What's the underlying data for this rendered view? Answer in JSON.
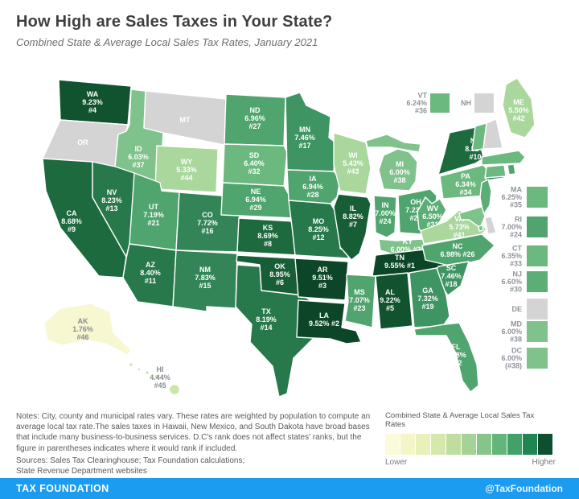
{
  "header": {
    "title": "How High are Sales Taxes in Your State?",
    "subtitle": "Combined State & Average Local Sales Tax Rates, January 2021"
  },
  "notes": "Notes: City, county and municipal rates vary. These rates are weighted by population to compute an average local tax rate.The sales taxes in Hawaii, New Mexico, and South Dakota have broad bases that include many business-to-business services. D.C's rank does not affect states' ranks, but the figure in parentheses indicates where it would rank if included.",
  "sources_line1": "Sources: Sales Tax Clearinghouse; Tax Foundation calculations;",
  "sources_line2": "State Revenue Department websites",
  "legend": {
    "title": "Combined State & Average Local Sales Tax Rates",
    "lower_label": "Lower",
    "higher_label": "Higher",
    "colors": [
      "#fbfbdc",
      "#f5f6c8",
      "#e9f0b8",
      "#d7e8ac",
      "#c0dda0",
      "#a5d295",
      "#86c489",
      "#63b57a",
      "#42a169",
      "#1f8551",
      "#0d4f2f"
    ]
  },
  "footer": {
    "left": "TAX FOUNDATION",
    "right": "@TaxFoundation",
    "bar_color": "#1b9cf0"
  },
  "map": {
    "no_data_fill": "#d4d4d4",
    "default_label_color": "#ffffff",
    "muted_label_color": "#898d92"
  },
  "chart_data": {
    "type": "choropleth",
    "title": "How High are Sales Taxes in Your State?",
    "subtitle": "Combined State & Average Local Sales Tax Rates, January 2021",
    "value_name": "combined state & average local sales tax rate",
    "unit": "%",
    "states": [
      {
        "abbr": "WA",
        "rate": 9.23,
        "rank": 4,
        "label_lines": [
          "WA",
          "9.23%",
          "#4"
        ],
        "fill": "#11532e"
      },
      {
        "abbr": "OR",
        "rate": null,
        "rank": null,
        "label_lines": [
          "OR"
        ],
        "fill": "#d4d4d4"
      },
      {
        "abbr": "CA",
        "rate": 8.68,
        "rank": 9,
        "label_lines": [
          "CA",
          "8.68%",
          "#9"
        ],
        "fill": "#1d6a3e"
      },
      {
        "abbr": "NV",
        "rate": 8.23,
        "rank": 13,
        "label_lines": [
          "NV",
          "8.23%",
          "#13"
        ],
        "fill": "#27784a"
      },
      {
        "abbr": "ID",
        "rate": 6.03,
        "rank": 37,
        "label_lines": [
          "ID",
          "6.03%",
          "#37"
        ],
        "fill": "#7fc28b"
      },
      {
        "abbr": "MT",
        "rate": null,
        "rank": null,
        "label_lines": [
          "MT"
        ],
        "fill": "#d4d4d4"
      },
      {
        "abbr": "WY",
        "rate": 5.33,
        "rank": 44,
        "label_lines": [
          "WY",
          "5.33%",
          "#44"
        ],
        "fill": "#a9d79c"
      },
      {
        "abbr": "UT",
        "rate": 7.19,
        "rank": 21,
        "label_lines": [
          "UT",
          "7.19%",
          "#21"
        ],
        "fill": "#50a56e"
      },
      {
        "abbr": "CO",
        "rate": 7.72,
        "rank": 16,
        "label_lines": [
          "CO",
          "7.72%",
          "#16"
        ],
        "fill": "#338557"
      },
      {
        "abbr": "AZ",
        "rate": 8.4,
        "rank": 11,
        "label_lines": [
          "AZ",
          "8.40%",
          "#11"
        ],
        "fill": "#27784a"
      },
      {
        "abbr": "NM",
        "rate": 7.83,
        "rank": 15,
        "label_lines": [
          "NM",
          "7.83%",
          "#15"
        ],
        "fill": "#338557"
      },
      {
        "abbr": "ND",
        "rate": 6.96,
        "rank": 27,
        "label_lines": [
          "ND",
          "6.96%",
          "#27"
        ],
        "fill": "#50a56e"
      },
      {
        "abbr": "SD",
        "rate": 6.4,
        "rank": 32,
        "label_lines": [
          "SD",
          "6.40%",
          "#32"
        ],
        "fill": "#6cb97f"
      },
      {
        "abbr": "NE",
        "rate": 6.94,
        "rank": 29,
        "label_lines": [
          "NE",
          "6.94%",
          "#29"
        ],
        "fill": "#50a56e"
      },
      {
        "abbr": "KS",
        "rate": 8.69,
        "rank": 8,
        "label_lines": [
          "KS",
          "8.69%",
          "#8"
        ],
        "fill": "#1d6a3e"
      },
      {
        "abbr": "OK",
        "rate": 8.95,
        "rank": 6,
        "label_lines": [
          "OK",
          "8.95%",
          "#6"
        ],
        "fill": "#175e36"
      },
      {
        "abbr": "TX",
        "rate": 8.19,
        "rank": 14,
        "label_lines": [
          "TX",
          "8.19%",
          "#14"
        ],
        "fill": "#27784a"
      },
      {
        "abbr": "MN",
        "rate": 7.46,
        "rank": 17,
        "label_lines": [
          "MN",
          "7.46%",
          "#17"
        ],
        "fill": "#3f9463"
      },
      {
        "abbr": "IA",
        "rate": 6.94,
        "rank": 28,
        "label_lines": [
          "IA",
          "6.94%",
          "#28"
        ],
        "fill": "#50a56e"
      },
      {
        "abbr": "MO",
        "rate": 8.25,
        "rank": 12,
        "label_lines": [
          "MO",
          "8.25%",
          "#12"
        ],
        "fill": "#27784a"
      },
      {
        "abbr": "AR",
        "rate": 9.51,
        "rank": 3,
        "label_lines": [
          "AR",
          "9.51%",
          "#3"
        ],
        "fill": "#0c4527"
      },
      {
        "abbr": "LA",
        "rate": 9.52,
        "rank": 2,
        "label_lines": [
          "LA",
          "9.52% #2"
        ],
        "fill": "#0c4527"
      },
      {
        "abbr": "WI",
        "rate": 5.43,
        "rank": 43,
        "label_lines": [
          "WI",
          "5.43%",
          "#43"
        ],
        "fill": "#a9d79c"
      },
      {
        "abbr": "IL",
        "rate": 8.82,
        "rank": 7,
        "label_lines": [
          "IL",
          "8.82%",
          "#7"
        ],
        "fill": "#175e36"
      },
      {
        "abbr": "MS",
        "rate": 7.07,
        "rank": 23,
        "label_lines": [
          "MS",
          "7.07%",
          "#23"
        ],
        "fill": "#50a56e"
      },
      {
        "abbr": "MI",
        "rate": 6.0,
        "rank": 38,
        "label_lines": [
          "MI",
          "6.00%",
          "#38"
        ],
        "fill": "#7fc28b"
      },
      {
        "abbr": "IN",
        "rate": 7.0,
        "rank": 24,
        "label_lines": [
          "IN",
          "7.00%",
          "#24"
        ],
        "fill": "#50a56e"
      },
      {
        "abbr": "OH",
        "rate": 7.23,
        "rank": 20,
        "label_lines": [
          "OH",
          "7.23%",
          "#20"
        ],
        "fill": "#50a56e"
      },
      {
        "abbr": "KY",
        "rate": 6.0,
        "rank": 38,
        "label_lines": [
          "KY",
          "6.00% #38"
        ],
        "fill": "#7fc28b"
      },
      {
        "abbr": "TN",
        "rate": 9.55,
        "rank": 1,
        "label_lines": [
          "TN",
          "9.55% #1"
        ],
        "fill": "#0c4527"
      },
      {
        "abbr": "AL",
        "rate": 9.22,
        "rank": 5,
        "label_lines": [
          "AL",
          "9.22%",
          "#5"
        ],
        "fill": "#11532e"
      },
      {
        "abbr": "WV",
        "rate": 6.5,
        "rank": 31,
        "label_lines": [
          "WV",
          "6.50%",
          "#31"
        ],
        "fill": "#5cae76"
      },
      {
        "abbr": "VA",
        "rate": 5.73,
        "rank": 41,
        "label_lines": [
          "VA",
          "5.73%",
          "#41"
        ],
        "fill": "#a9d79c"
      },
      {
        "abbr": "NC",
        "rate": 6.98,
        "rank": 26,
        "label_lines": [
          "NC",
          "6.98% #26"
        ],
        "fill": "#50a56e"
      },
      {
        "abbr": "SC",
        "rate": 7.46,
        "rank": 18,
        "label_lines": [
          "SC",
          "7.46%",
          "#18"
        ],
        "fill": "#3f9463"
      },
      {
        "abbr": "GA",
        "rate": 7.32,
        "rank": 19,
        "label_lines": [
          "GA",
          "7.32%",
          "#19"
        ],
        "fill": "#3f9463"
      },
      {
        "abbr": "FL",
        "rate": 7.08,
        "rank": 22,
        "label_lines": [
          "FL",
          "7.08%",
          "#22"
        ],
        "fill": "#50a56e"
      },
      {
        "abbr": "PA",
        "rate": 6.34,
        "rank": 34,
        "label_lines": [
          "PA",
          "6.34%",
          "#34"
        ],
        "fill": "#6cb97f"
      },
      {
        "abbr": "NY",
        "rate": 8.52,
        "rank": 10,
        "label_lines": [
          "NY",
          "8.52%",
          "#10"
        ],
        "fill": "#1d6a3e"
      },
      {
        "abbr": "ME",
        "rate": 5.5,
        "rank": 42,
        "label_lines": [
          "ME",
          "5.50%",
          "#42"
        ],
        "fill": "#a9d79c"
      },
      {
        "abbr": "AK",
        "rate": 1.76,
        "rank": 46,
        "label_lines": [
          "AK",
          "1.76%",
          "#46"
        ],
        "fill": "#f7f7d2",
        "label_color": "#898d92"
      },
      {
        "abbr": "HI",
        "rate": 4.44,
        "rank": 45,
        "label_lines": [
          "HI",
          "4.44%",
          "#45"
        ],
        "fill": "#cbe6aa",
        "label_color": "#898d92"
      },
      {
        "abbr": "VT",
        "rate": 6.24,
        "rank": 36,
        "label_lines": [
          "VT",
          "6.24%",
          "#36"
        ],
        "fill": "#6cb97f",
        "label_color": "#898d92"
      },
      {
        "abbr": "NH",
        "rate": null,
        "rank": null,
        "label_lines": [
          "NH"
        ],
        "fill": "#d4d4d4",
        "label_color": "#898d92"
      },
      {
        "abbr": "MA",
        "rate": 6.25,
        "rank": 35,
        "label_lines": [
          "MA",
          "6.25%",
          "#35"
        ],
        "fill": "#6cb97f",
        "label_color": "#898d92"
      },
      {
        "abbr": "RI",
        "rate": 7.0,
        "rank": 24,
        "label_lines": [
          "RI",
          "7.00%",
          "#24"
        ],
        "fill": "#50a56e",
        "label_color": "#898d92"
      },
      {
        "abbr": "CT",
        "rate": 6.35,
        "rank": 33,
        "label_lines": [
          "CT",
          "6.35%",
          "#33"
        ],
        "fill": "#6cb97f",
        "label_color": "#898d92"
      },
      {
        "abbr": "NJ",
        "rate": 6.6,
        "rank": 30,
        "label_lines": [
          "NJ",
          "6.60%",
          "#30"
        ],
        "fill": "#5cae76",
        "label_color": "#898d92"
      },
      {
        "abbr": "DE",
        "rate": null,
        "rank": null,
        "label_lines": [
          "DE"
        ],
        "fill": "#d4d4d4",
        "label_color": "#898d92"
      },
      {
        "abbr": "MD",
        "rate": 6.0,
        "rank": 38,
        "label_lines": [
          "MD",
          "6.00%",
          "#38"
        ],
        "fill": "#7fc28b",
        "label_color": "#898d92"
      },
      {
        "abbr": "DC",
        "rate": 6.0,
        "rank": 38,
        "label_lines": [
          "DC",
          "6.00%",
          "(#38)"
        ],
        "fill": "#7fc28b",
        "label_color": "#898d92"
      }
    ]
  }
}
